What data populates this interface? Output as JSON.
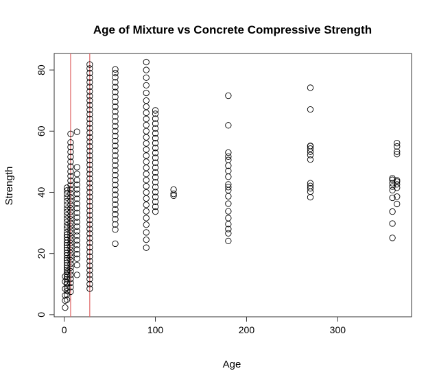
{
  "chart_data": {
    "type": "scatter",
    "title": "Age of Mixture vs Concrete Compressive Strength",
    "xlabel": "Age",
    "ylabel": "Strength",
    "xlim": [
      -11,
      381
    ],
    "ylim": [
      -0.7,
      85.4
    ],
    "x_ticks": [
      0,
      100,
      200,
      300
    ],
    "y_ticks": [
      0,
      20,
      40,
      60,
      80
    ],
    "grid": false,
    "legend": "none",
    "vertical_lines": [
      {
        "x": 7,
        "color": "#e06666"
      },
      {
        "x": 28,
        "color": "#e06666"
      }
    ],
    "point_groups": [
      {
        "x": 1,
        "y": [
          2.3,
          4.6,
          6.3,
          8.5,
          10.8,
          12.5
        ]
      },
      {
        "x": 3,
        "y": [
          4.9,
          6.5,
          7.7,
          8.8,
          9.9,
          10.5,
          11.6,
          12.3,
          13.2,
          14.0,
          14.6,
          15.3,
          16.1,
          17.0,
          17.8,
          18.5,
          19.4,
          20.2,
          21.1,
          21.9,
          22.7,
          23.5,
          24.4,
          25.3,
          26.1,
          27.0,
          28.2,
          29.2,
          30.3,
          31.4,
          32.5,
          33.6,
          34.7,
          35.9,
          37.1,
          38.3,
          39.5,
          40.6,
          41.5
        ]
      },
      {
        "x": 7,
        "y": [
          7.5,
          9.0,
          10.4,
          11.7,
          13.0,
          14.2,
          15.4,
          16.6,
          17.8,
          19.0,
          20.1,
          21.2,
          22.3,
          23.4,
          24.5,
          25.6,
          26.7,
          27.8,
          28.9,
          30.0,
          31.2,
          32.4,
          33.6,
          34.8,
          36.0,
          37.2,
          38.4,
          39.7,
          41.0,
          42.4,
          43.8,
          45.3,
          46.8,
          48.4,
          50.0,
          51.6,
          53.2,
          54.8,
          56.3,
          59.1
        ]
      },
      {
        "x": 14,
        "y": [
          13.0,
          16.2,
          18.3,
          19.8,
          21.3,
          22.8,
          24.3,
          25.8,
          27.3,
          28.8,
          30.3,
          31.8,
          33.3,
          34.8,
          36.3,
          37.9,
          39.5,
          41.0,
          42.5,
          44.0,
          46.0,
          48.2,
          59.8
        ]
      },
      {
        "x": 28,
        "y": [
          8.5,
          10.0,
          11.6,
          13.0,
          14.5,
          16.0,
          17.5,
          19.0,
          20.5,
          22.0,
          23.5,
          25.0,
          26.5,
          28.0,
          29.5,
          31.0,
          32.5,
          34.0,
          35.5,
          37.0,
          38.5,
          40.0,
          41.5,
          43.0,
          44.5,
          46.0,
          47.5,
          49.0,
          50.5,
          52.0,
          53.5,
          55.0,
          56.5,
          58.0,
          59.5,
          61.0,
          62.5,
          64.0,
          65.5,
          67.0,
          68.5,
          70.0,
          71.5,
          73.0,
          74.5,
          76.0,
          77.5,
          79.0,
          80.5,
          81.8
        ]
      },
      {
        "x": 56,
        "y": [
          23.2,
          27.8,
          29.5,
          31.2,
          32.8,
          34.4,
          36.0,
          37.6,
          39.2,
          40.8,
          42.4,
          44.0,
          45.6,
          47.2,
          48.8,
          50.4,
          52.0,
          53.6,
          55.2,
          56.8,
          58.4,
          60.0,
          61.6,
          63.2,
          64.8,
          66.4,
          68.0,
          69.6,
          71.2,
          72.8,
          74.4,
          76.0,
          77.6,
          79.0,
          80.2
        ]
      },
      {
        "x": 90,
        "y": [
          21.9,
          24.5,
          26.9,
          29.4,
          31.6,
          33.8,
          35.9,
          38.0,
          40.0,
          42.0,
          44.0,
          46.0,
          48.0,
          50.0,
          52.0,
          54.0,
          56.0,
          58.0,
          60.0,
          62.0,
          64.0,
          66.0,
          68.0,
          70.0,
          72.5,
          75.0,
          77.5,
          80.0,
          82.6
        ]
      },
      {
        "x": 100,
        "y": [
          33.7,
          35.3,
          36.9,
          38.5,
          40.1,
          41.7,
          43.3,
          44.9,
          46.5,
          48.1,
          49.7,
          51.3,
          52.9,
          54.5,
          56.1,
          57.7,
          59.3,
          60.9,
          62.5,
          64.1,
          65.7,
          66.8
        ]
      },
      {
        "x": 120,
        "y": [
          38.9,
          39.5,
          40.9
        ]
      },
      {
        "x": 180,
        "y": [
          24.1,
          26.6,
          28.0,
          29.6,
          31.6,
          33.8,
          36.3,
          38.7,
          40.7,
          41.7,
          42.6,
          45.1,
          47.0,
          48.7,
          50.6,
          51.7,
          53.0,
          61.9,
          71.6
        ]
      },
      {
        "x": 270,
        "y": [
          38.4,
          40.2,
          41.3,
          42.1,
          43.0,
          50.7,
          52.2,
          53.3,
          54.3,
          55.1,
          55.2,
          67.1,
          74.2
        ]
      },
      {
        "x": 360,
        "y": [
          25.1,
          29.8,
          33.7,
          38.2,
          40.7,
          41.9,
          43.0,
          44.1,
          44.6
        ]
      },
      {
        "x": 365,
        "y": [
          36.2,
          38.6,
          41.5,
          42.6,
          43.5,
          43.9,
          52.5,
          53.3,
          55.0,
          56.1
        ]
      }
    ]
  }
}
